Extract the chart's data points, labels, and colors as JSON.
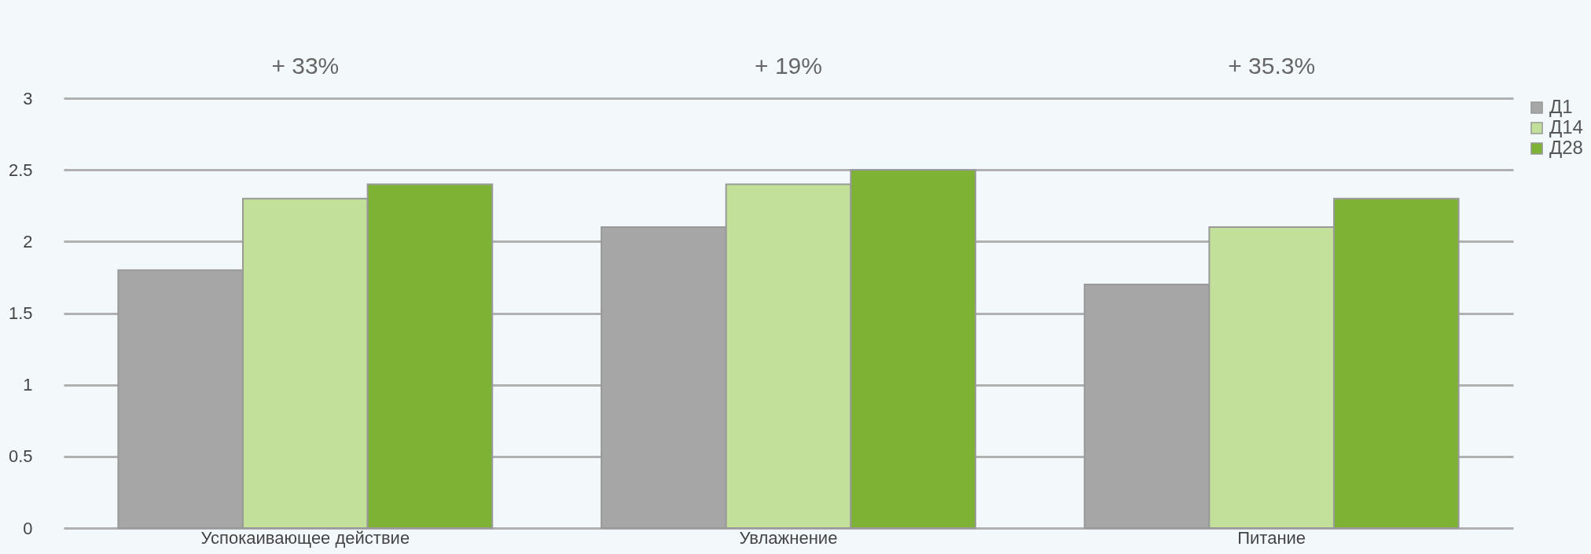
{
  "chart_data": {
    "type": "bar",
    "categories": [
      "Успокаивающее действие",
      "Увлажнение",
      "Питание"
    ],
    "series": [
      {
        "name": "Д1",
        "color": "#a6a6a6",
        "values": [
          1.8,
          2.1,
          1.7
        ]
      },
      {
        "name": "Д14",
        "color": "#c3e09a",
        "values": [
          2.3,
          2.4,
          2.1
        ]
      },
      {
        "name": "Д28",
        "color": "#7db234",
        "values": [
          2.4,
          2.5,
          2.3
        ]
      }
    ],
    "ylim": [
      0,
      3
    ],
    "yticks": [
      0,
      0.5,
      1,
      1.5,
      2,
      2.5,
      3
    ],
    "grid": "y",
    "legend": "top right",
    "annotations": [
      "+ 33%",
      "+ 19%",
      "+ 35.3%"
    ]
  }
}
